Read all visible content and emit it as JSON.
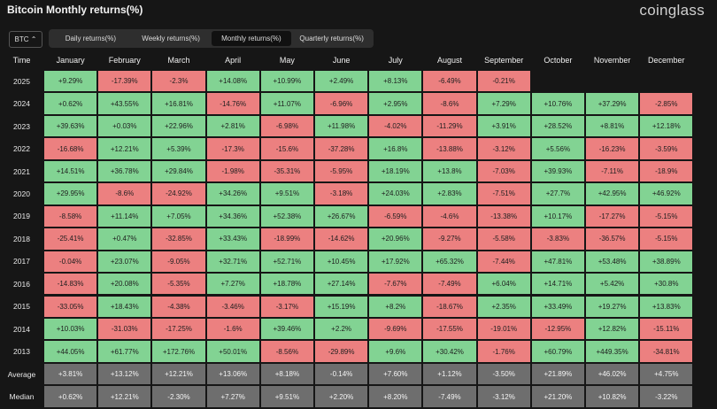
{
  "header": {
    "title": "Bitcoin Monthly returns(%)",
    "brand": "coinglass",
    "asset": "BTC",
    "tabs": [
      "Daily returns(%)",
      "Weekly returns(%)",
      "Monthly returns(%)",
      "Quarterly returns(%)"
    ],
    "active_tab": 2
  },
  "table": {
    "columns": [
      "Time",
      "January",
      "February",
      "March",
      "April",
      "May",
      "June",
      "July",
      "August",
      "September",
      "October",
      "November",
      "December"
    ],
    "rows": [
      {
        "time": "2025",
        "values": [
          "+9.29%",
          "-17.39%",
          "-2.3%",
          "+14.08%",
          "+10.99%",
          "+2.49%",
          "+8.13%",
          "-6.49%",
          "-0.21%"
        ]
      },
      {
        "time": "2024",
        "values": [
          "+0.62%",
          "+43.55%",
          "+16.81%",
          "-14.76%",
          "+11.07%",
          "-6.96%",
          "+2.95%",
          "-8.6%",
          "+7.29%",
          "+10.76%",
          "+37.29%",
          "-2.85%"
        ]
      },
      {
        "time": "2023",
        "values": [
          "+39.63%",
          "+0.03%",
          "+22.96%",
          "+2.81%",
          "-6.98%",
          "+11.98%",
          "-4.02%",
          "-11.29%",
          "+3.91%",
          "+28.52%",
          "+8.81%",
          "+12.18%"
        ]
      },
      {
        "time": "2022",
        "values": [
          "-16.68%",
          "+12.21%",
          "+5.39%",
          "-17.3%",
          "-15.6%",
          "-37.28%",
          "+16.8%",
          "-13.88%",
          "-3.12%",
          "+5.56%",
          "-16.23%",
          "-3.59%"
        ]
      },
      {
        "time": "2021",
        "values": [
          "+14.51%",
          "+36.78%",
          "+29.84%",
          "-1.98%",
          "-35.31%",
          "-5.95%",
          "+18.19%",
          "+13.8%",
          "-7.03%",
          "+39.93%",
          "-7.11%",
          "-18.9%"
        ]
      },
      {
        "time": "2020",
        "values": [
          "+29.95%",
          "-8.6%",
          "-24.92%",
          "+34.26%",
          "+9.51%",
          "-3.18%",
          "+24.03%",
          "+2.83%",
          "-7.51%",
          "+27.7%",
          "+42.95%",
          "+46.92%"
        ]
      },
      {
        "time": "2019",
        "values": [
          "-8.58%",
          "+11.14%",
          "+7.05%",
          "+34.36%",
          "+52.38%",
          "+26.67%",
          "-6.59%",
          "-4.6%",
          "-13.38%",
          "+10.17%",
          "-17.27%",
          "-5.15%"
        ]
      },
      {
        "time": "2018",
        "values": [
          "-25.41%",
          "+0.47%",
          "-32.85%",
          "+33.43%",
          "-18.99%",
          "-14.62%",
          "+20.96%",
          "-9.27%",
          "-5.58%",
          "-3.83%",
          "-36.57%",
          "-5.15%"
        ]
      },
      {
        "time": "2017",
        "values": [
          "-0.04%",
          "+23.07%",
          "-9.05%",
          "+32.71%",
          "+52.71%",
          "+10.45%",
          "+17.92%",
          "+65.32%",
          "-7.44%",
          "+47.81%",
          "+53.48%",
          "+38.89%"
        ]
      },
      {
        "time": "2016",
        "values": [
          "-14.83%",
          "+20.08%",
          "-5.35%",
          "+7.27%",
          "+18.78%",
          "+27.14%",
          "-7.67%",
          "-7.49%",
          "+6.04%",
          "+14.71%",
          "+5.42%",
          "+30.8%"
        ]
      },
      {
        "time": "2015",
        "values": [
          "-33.05%",
          "+18.43%",
          "-4.38%",
          "-3.46%",
          "-3.17%",
          "+15.19%",
          "+8.2%",
          "-18.67%",
          "+2.35%",
          "+33.49%",
          "+19.27%",
          "+13.83%"
        ]
      },
      {
        "time": "2014",
        "values": [
          "+10.03%",
          "-31.03%",
          "-17.25%",
          "-1.6%",
          "+39.46%",
          "+2.2%",
          "-9.69%",
          "-17.55%",
          "-19.01%",
          "-12.95%",
          "+12.82%",
          "-15.11%"
        ]
      },
      {
        "time": "2013",
        "values": [
          "+44.05%",
          "+61.77%",
          "+172.76%",
          "+50.01%",
          "-8.56%",
          "-29.89%",
          "+9.6%",
          "+30.42%",
          "-1.76%",
          "+60.79%",
          "+449.35%",
          "-34.81%"
        ]
      }
    ],
    "summary_rows": [
      {
        "time": "Average",
        "values": [
          "+3.81%",
          "+13.12%",
          "+12.21%",
          "+13.06%",
          "+8.18%",
          "-0.14%",
          "+7.60%",
          "+1.12%",
          "-3.50%",
          "+21.89%",
          "+46.02%",
          "+4.75%"
        ]
      },
      {
        "time": "Median",
        "values": [
          "+0.62%",
          "+12.21%",
          "-2.30%",
          "+7.27%",
          "+9.51%",
          "+2.20%",
          "+8.20%",
          "-7.49%",
          "-3.12%",
          "+21.20%",
          "+10.82%",
          "-3.22%"
        ]
      }
    ]
  }
}
